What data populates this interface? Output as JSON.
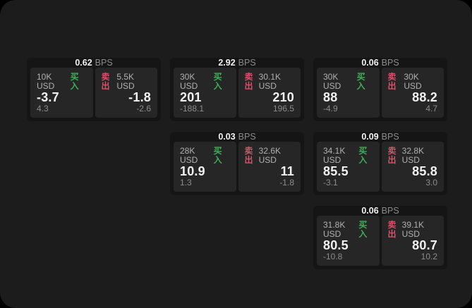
{
  "colors": {
    "surface_bg": "#1c1c1c",
    "card_bg": "#151515",
    "panel_bg": "#262626",
    "buy_green": "#3fae57",
    "sell_red": "#d4546a",
    "text_primary": "#f2f2f2",
    "text_secondary": "#b0b0b0",
    "text_dim": "#8c8c8c"
  },
  "labels": {
    "bps_unit": "BPS",
    "buy": "买入",
    "sell": "卖出"
  },
  "cards": [
    {
      "bps": "0.62",
      "buy": {
        "size": "10K USD",
        "price": "-3.7",
        "delta": "4.3"
      },
      "sell": {
        "size": "5.5K USD",
        "price": "-1.8",
        "delta": "-2.6"
      }
    },
    {
      "bps": "2.92",
      "buy": {
        "size": "30K USD",
        "price": "201",
        "delta": "-188.1"
      },
      "sell": {
        "size": "30.1K USD",
        "price": "210",
        "delta": "196.5"
      }
    },
    {
      "bps": "0.06",
      "buy": {
        "size": "30K USD",
        "price": "88",
        "delta": "-4.9"
      },
      "sell": {
        "size": "30K USD",
        "price": "88.2",
        "delta": "4.7"
      }
    },
    {
      "bps": "0.03",
      "buy": {
        "size": "28K USD",
        "price": "10.9",
        "delta": "1.3"
      },
      "sell": {
        "size": "32.6K USD",
        "price": "11",
        "delta": "-1.8"
      }
    },
    {
      "bps": "0.09",
      "buy": {
        "size": "34.1K USD",
        "price": "85.5",
        "delta": "-3.1"
      },
      "sell": {
        "size": "32.8K USD",
        "price": "85.8",
        "delta": "3.0"
      }
    },
    {
      "bps": "0.06",
      "buy": {
        "size": "31.8K USD",
        "price": "80.5",
        "delta": "-10.8"
      },
      "sell": {
        "size": "39.1K USD",
        "price": "80.7",
        "delta": "10.2"
      }
    }
  ]
}
